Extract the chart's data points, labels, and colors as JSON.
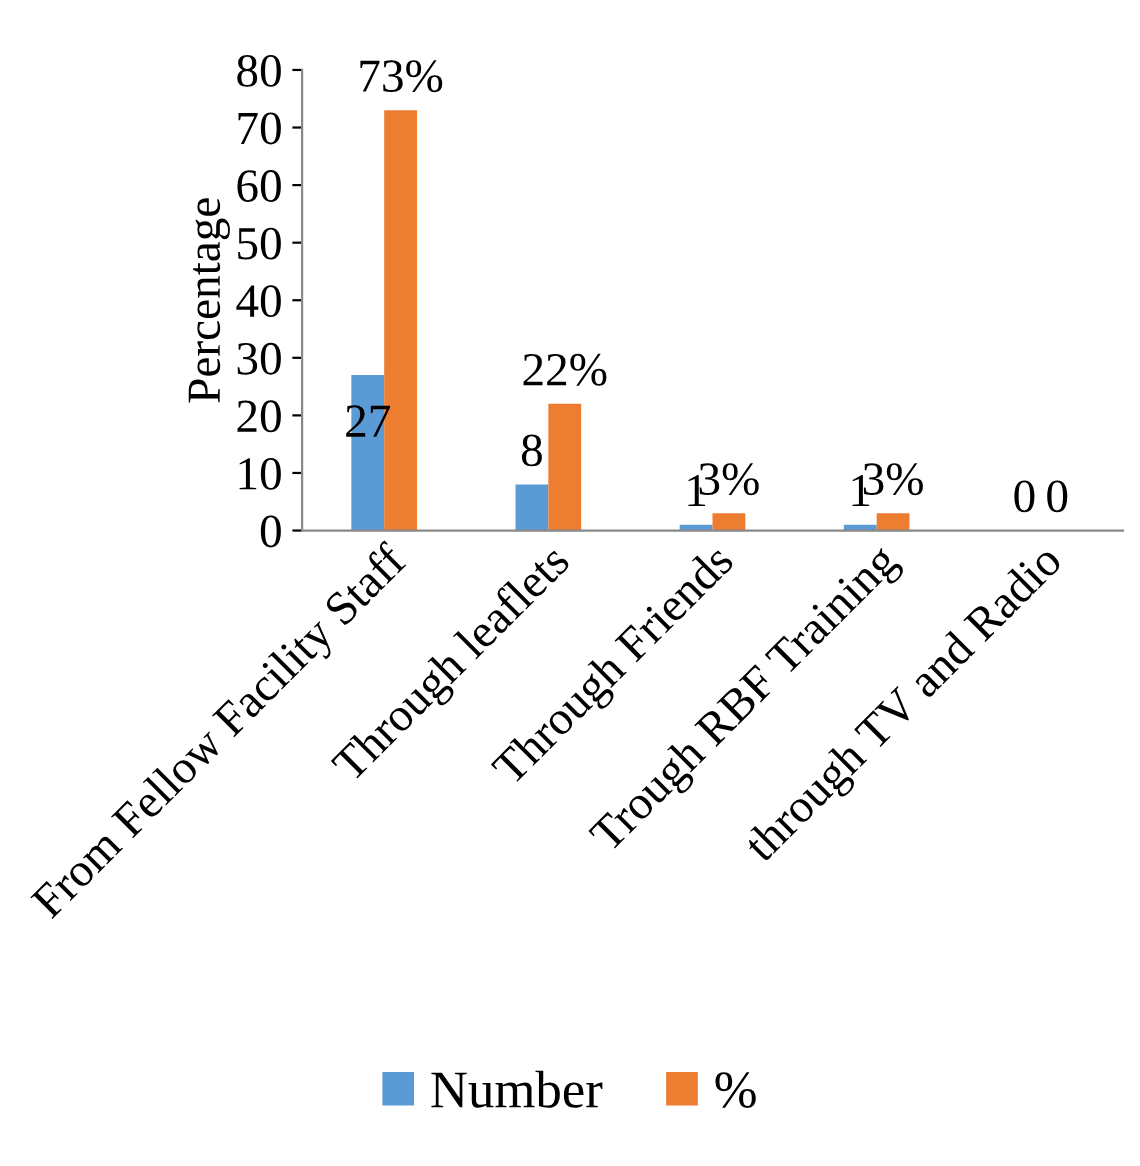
{
  "chart_data": {
    "type": "bar",
    "ylabel": "Percentage",
    "categories": [
      "From Fellow Facility Staff",
      "Through leaflets",
      "Through Friends",
      "Trough RBF Training",
      "through TV and Radio"
    ],
    "series": [
      {
        "name": "Number",
        "color": "#5b9bd5",
        "values": [
          27,
          8,
          1,
          1,
          0
        ],
        "value_labels": [
          "27",
          "8",
          "1",
          "1",
          "0"
        ]
      },
      {
        "name": "%",
        "color": "#ed7d31",
        "values": [
          73,
          22,
          3,
          3,
          0
        ],
        "value_labels": [
          "73%",
          "22%",
          "3%",
          "3%",
          "0"
        ]
      }
    ],
    "ylim": [
      0,
      80
    ],
    "yticks": [
      0,
      10,
      20,
      30,
      40,
      50,
      60,
      70,
      80
    ],
    "grid": false,
    "legend": "bottom"
  }
}
